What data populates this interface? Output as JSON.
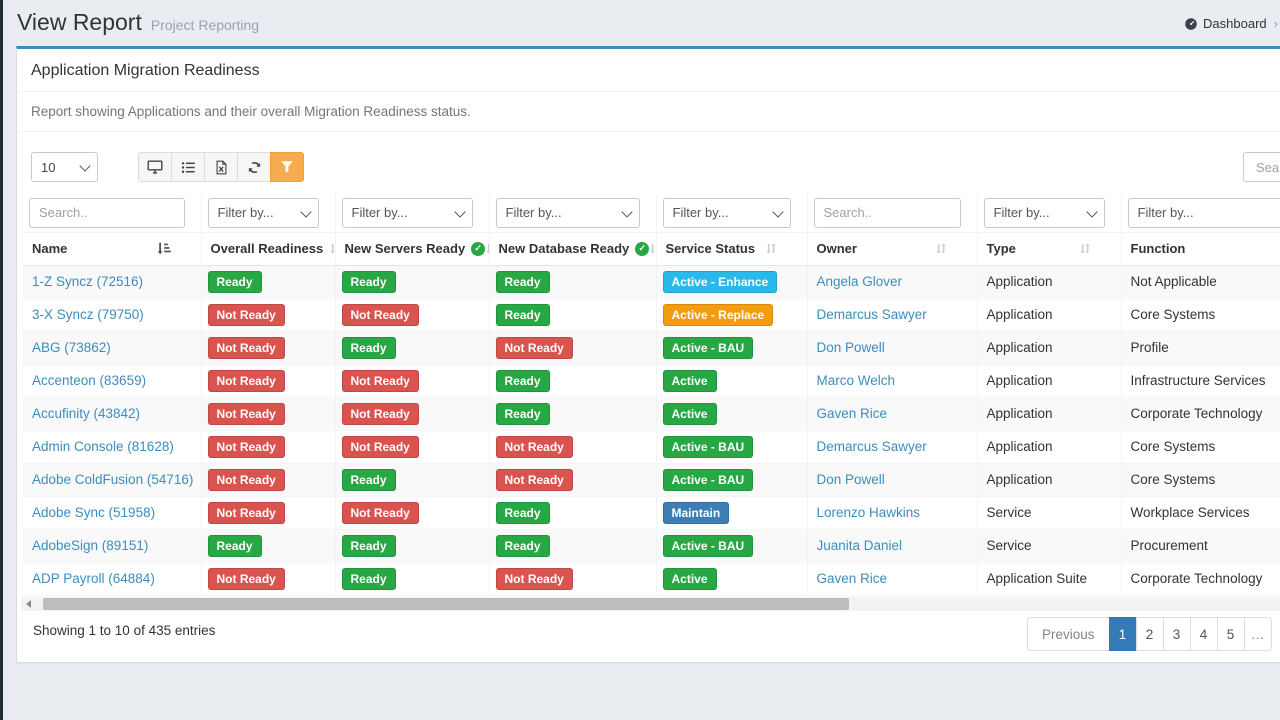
{
  "page": {
    "title": "View Report",
    "subtitle": "Project Reporting",
    "breadcrumb": {
      "icon": "dashboard-icon",
      "label": "Dashboard",
      "divider": "›"
    }
  },
  "report": {
    "title": "Application Migration Readiness",
    "description": "Report showing Applications and their overall Migration Readiness status.",
    "page_size": "10",
    "search_placeholder": "Search",
    "toolbar_buttons": [
      {
        "icon": "desktop-icon",
        "active": false
      },
      {
        "icon": "list-columns-icon",
        "active": false
      },
      {
        "icon": "excel-export-icon",
        "active": false
      },
      {
        "icon": "refresh-icon",
        "active": false
      },
      {
        "icon": "filter-icon",
        "active": true
      }
    ],
    "columns": [
      {
        "label": "Name",
        "sort": "active",
        "check": false,
        "filter": {
          "type": "search",
          "placeholder": "Search.."
        }
      },
      {
        "label": "Overall Readiness",
        "sort": "inactive",
        "check": false,
        "filter": {
          "type": "select",
          "placeholder": "Filter by..."
        }
      },
      {
        "label": "New Servers Ready",
        "sort": "inactive",
        "check": true,
        "filter": {
          "type": "select",
          "placeholder": "Filter by..."
        }
      },
      {
        "label": "New Database Ready",
        "sort": "inactive",
        "check": true,
        "filter": {
          "type": "select",
          "placeholder": "Filter by..."
        }
      },
      {
        "label": "Service Status",
        "sort": "inactive",
        "check": false,
        "filter": {
          "type": "select",
          "placeholder": "Filter by..."
        }
      },
      {
        "label": "Owner",
        "sort": "inactive",
        "check": false,
        "filter": {
          "type": "search",
          "placeholder": "Search.."
        }
      },
      {
        "label": "Type",
        "sort": "inactive",
        "check": false,
        "filter": {
          "type": "select",
          "placeholder": "Filter by..."
        }
      },
      {
        "label": "Function",
        "sort": "none",
        "check": false,
        "filter": {
          "type": "select",
          "placeholder": "Filter by..."
        }
      }
    ],
    "rows": [
      {
        "name": "1-Z Syncz (72516)",
        "overall": {
          "label": "Ready",
          "color": "green"
        },
        "servers": {
          "label": "Ready",
          "color": "green"
        },
        "database": {
          "label": "Ready",
          "color": "green"
        },
        "status": {
          "label": "Active - Enhance",
          "color": "cyan"
        },
        "owner": "Angela Glover",
        "type": "Application",
        "function": "Not Applicable"
      },
      {
        "name": "3-X Syncz (79750)",
        "overall": {
          "label": "Not Ready",
          "color": "red"
        },
        "servers": {
          "label": "Not Ready",
          "color": "red"
        },
        "database": {
          "label": "Ready",
          "color": "green"
        },
        "status": {
          "label": "Active - Replace",
          "color": "orange"
        },
        "owner": "Demarcus Sawyer",
        "type": "Application",
        "function": "Core Systems"
      },
      {
        "name": "ABG (73862)",
        "overall": {
          "label": "Not Ready",
          "color": "red"
        },
        "servers": {
          "label": "Ready",
          "color": "green"
        },
        "database": {
          "label": "Not Ready",
          "color": "red"
        },
        "status": {
          "label": "Active - BAU",
          "color": "green"
        },
        "owner": "Don Powell",
        "type": "Application",
        "function": "Profile"
      },
      {
        "name": "Accenteon (83659)",
        "overall": {
          "label": "Not Ready",
          "color": "red"
        },
        "servers": {
          "label": "Not Ready",
          "color": "red"
        },
        "database": {
          "label": "Ready",
          "color": "green"
        },
        "status": {
          "label": "Active",
          "color": "green"
        },
        "owner": "Marco Welch",
        "type": "Application",
        "function": "Infrastructure Services"
      },
      {
        "name": "Accufinity (43842)",
        "overall": {
          "label": "Not Ready",
          "color": "red"
        },
        "servers": {
          "label": "Not Ready",
          "color": "red"
        },
        "database": {
          "label": "Ready",
          "color": "green"
        },
        "status": {
          "label": "Active",
          "color": "green"
        },
        "owner": "Gaven Rice",
        "type": "Application",
        "function": "Corporate Technology"
      },
      {
        "name": "Admin Console (81628)",
        "overall": {
          "label": "Not Ready",
          "color": "red"
        },
        "servers": {
          "label": "Not Ready",
          "color": "red"
        },
        "database": {
          "label": "Not Ready",
          "color": "red"
        },
        "status": {
          "label": "Active - BAU",
          "color": "green"
        },
        "owner": "Demarcus Sawyer",
        "type": "Application",
        "function": "Core Systems"
      },
      {
        "name": "Adobe ColdFusion (54716)",
        "overall": {
          "label": "Not Ready",
          "color": "red"
        },
        "servers": {
          "label": "Ready",
          "color": "green"
        },
        "database": {
          "label": "Not Ready",
          "color": "red"
        },
        "status": {
          "label": "Active - BAU",
          "color": "green"
        },
        "owner": "Don Powell",
        "type": "Application",
        "function": "Core Systems"
      },
      {
        "name": "Adobe Sync (51958)",
        "overall": {
          "label": "Not Ready",
          "color": "red"
        },
        "servers": {
          "label": "Not Ready",
          "color": "red"
        },
        "database": {
          "label": "Ready",
          "color": "green"
        },
        "status": {
          "label": "Maintain",
          "color": "blue"
        },
        "owner": "Lorenzo Hawkins",
        "type": "Service",
        "function": "Workplace Services"
      },
      {
        "name": "AdobeSign (89151)",
        "overall": {
          "label": "Ready",
          "color": "green"
        },
        "servers": {
          "label": "Ready",
          "color": "green"
        },
        "database": {
          "label": "Ready",
          "color": "green"
        },
        "status": {
          "label": "Active - BAU",
          "color": "green"
        },
        "owner": "Juanita Daniel",
        "type": "Service",
        "function": "Procurement"
      },
      {
        "name": "ADP Payroll (64884)",
        "overall": {
          "label": "Not Ready",
          "color": "red"
        },
        "servers": {
          "label": "Ready",
          "color": "green"
        },
        "database": {
          "label": "Not Ready",
          "color": "red"
        },
        "status": {
          "label": "Active",
          "color": "green"
        },
        "owner": "Gaven Rice",
        "type": "Application Suite",
        "function": "Corporate Technology"
      }
    ],
    "footer": {
      "showing": "Showing 1 to 10 of 435 entries",
      "pagination": {
        "prev_label": "Previous",
        "pages": [
          "1",
          "2",
          "3",
          "4",
          "5"
        ],
        "active_page": "1",
        "ellipsis": "…"
      }
    }
  },
  "colors": {
    "accent": "#3c8dbc",
    "page_active": "#337ab7",
    "filter_button": "#f5ab4e",
    "green": "#28a745",
    "red": "#d9534f",
    "cyan": "#29b9ea",
    "orange": "#f39c12",
    "blue": "#3d7eb3"
  }
}
